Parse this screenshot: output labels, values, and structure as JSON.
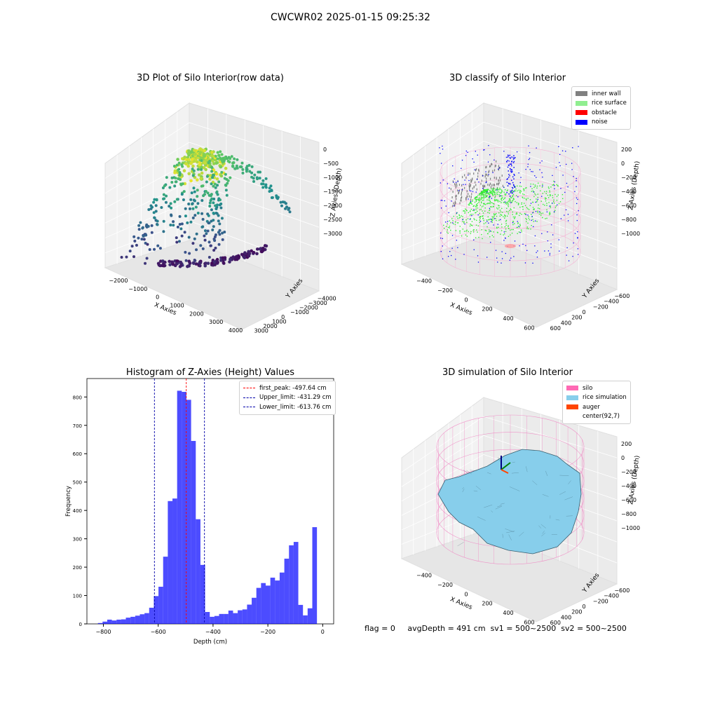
{
  "suptitle": "CWCWR02 2025-01-15 09:25:32",
  "status": {
    "flag": "flag = 0",
    "avg_depth": "avgDepth = 491 cm",
    "sv1": "sv1 = 500~2500",
    "sv2": "sv2 = 500~2500"
  },
  "colors": {
    "inner_wall": "#808080",
    "rice_surface": "#90ee90",
    "obstacle": "#ff0000",
    "noise": "#0000ff",
    "silo": "#ff69b4",
    "rice_simulation": "#87ceeb",
    "auger": "#ff4500",
    "hist_bar": "#0000ff",
    "first_peak_line": "#ff0000",
    "limit_line": "#0000aa"
  },
  "chart_data": [
    {
      "type": "scatter",
      "title": "3D Plot of Silo Interior(row data)",
      "xlabel": "X Axies",
      "ylabel": "Y Axies",
      "zlabel": "Z Axies (Depth)",
      "xticks": [
        "−2000",
        "−1000",
        "0",
        "1000",
        "2000",
        "3000",
        "4000"
      ],
      "yticks": [
        "−4000",
        "−3000",
        "−2000",
        "−1000",
        "0",
        "1000",
        "2000",
        "3000"
      ],
      "zticks": [
        "0",
        "−500",
        "−1000",
        "−1500",
        "−2000",
        "−2500",
        "−3000"
      ],
      "xlim": [
        -2000,
        4000
      ],
      "ylim": [
        -4000,
        3000
      ],
      "zlim": [
        -3000,
        0
      ],
      "colormap": "viridis (by depth)",
      "grid": true
    },
    {
      "type": "scatter",
      "title": "3D classify of Silo Interior",
      "xlabel": "X Axies",
      "ylabel": "Y Axies",
      "zlabel": "Z Axies (Depth)",
      "xticks": [
        "−400",
        "−200",
        "0",
        "200",
        "400",
        "600"
      ],
      "yticks": [
        "−600",
        "−400",
        "−200",
        "0",
        "200",
        "400",
        "600"
      ],
      "zticks": [
        "200",
        "0",
        "−200",
        "−400",
        "−600",
        "−800",
        "−1000"
      ],
      "xlim": [
        -400,
        600
      ],
      "ylim": [
        -600,
        600
      ],
      "zlim": [
        -1000,
        200
      ],
      "legend": [
        "inner wall",
        "rice surface",
        "obstacle",
        "noise"
      ],
      "legend_position": "top-right",
      "grid": true
    },
    {
      "type": "bar",
      "title": "Histogram of Z-Axies (Height) Values",
      "xlabel": "Depth (cm)",
      "ylabel": "Frequency",
      "xticks": [
        "−800",
        "−600",
        "−400",
        "−200",
        "0"
      ],
      "yticks": [
        "0",
        "100",
        "200",
        "300",
        "400",
        "500",
        "600",
        "700",
        "800"
      ],
      "xlim": [
        -860,
        40
      ],
      "ylim": [
        0,
        865
      ],
      "bin_start": -820,
      "bin_width": 17,
      "values": [
        3,
        8,
        15,
        12,
        15,
        16,
        22,
        25,
        29,
        34,
        38,
        57,
        98,
        131,
        237,
        433,
        442,
        822,
        818,
        790,
        645,
        369,
        208,
        42,
        25,
        28,
        35,
        35,
        47,
        38,
        48,
        51,
        68,
        92,
        127,
        144,
        135,
        163,
        153,
        181,
        230,
        277,
        289,
        67,
        30,
        55,
        341
      ],
      "lines": [
        {
          "label": "first_peak: -497.64 cm",
          "x": -497.64,
          "style": "red dashed"
        },
        {
          "label": "Upper_limit: -431.29 cm",
          "x": -431.29,
          "style": "blue dashed"
        },
        {
          "label": "Lower_limit: -613.76 cm",
          "x": -613.76,
          "style": "blue dashed"
        }
      ],
      "legend_position": "top-right"
    },
    {
      "type": "surface",
      "title": "3D simulation of Silo Interior",
      "xlabel": "X Axies",
      "ylabel": "Y Axies",
      "zlabel": "Z Axies (Depth)",
      "xticks": [
        "−400",
        "−200",
        "0",
        "200",
        "400",
        "600"
      ],
      "yticks": [
        "−600",
        "−400",
        "−200",
        "0",
        "200",
        "400",
        "600"
      ],
      "zticks": [
        "200",
        "0",
        "−200",
        "−400",
        "−600",
        "−800",
        "−1000"
      ],
      "xlim": [
        -400,
        600
      ],
      "ylim": [
        -600,
        600
      ],
      "zlim": [
        -1000,
        200
      ],
      "legend": [
        "silo",
        "rice simulation",
        "auger",
        "center(92,7)"
      ],
      "legend_position": "top-right",
      "grid": true
    }
  ]
}
